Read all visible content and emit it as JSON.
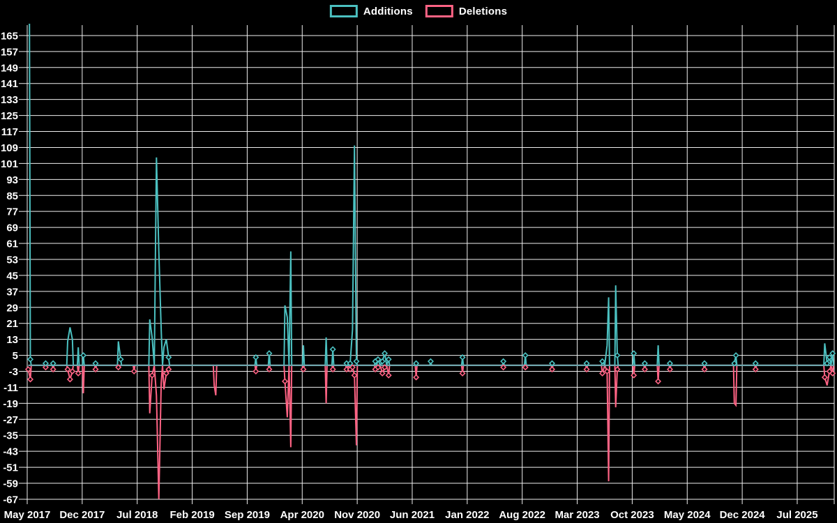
{
  "legend": {
    "additions_label": "Additions",
    "deletions_label": "Deletions"
  },
  "colors": {
    "background": "#000000",
    "grid": "#f0f0f0",
    "text": "#ffffff",
    "additions": "#4bc0c0",
    "deletions": "#ff6384",
    "baseline_blend": "#6fa6ae"
  },
  "chart_data": {
    "type": "line",
    "title": "",
    "legend_position": "top-center",
    "grid": true,
    "x_axis": {
      "unit": "month",
      "label_interval_months": 7,
      "labels": [
        "May 2017",
        "Dec 2017",
        "Jul 2018",
        "Feb 2019",
        "Sep 2019",
        "Apr 2020",
        "Nov 2020",
        "Jun 2021",
        "Jan 2022",
        "Aug 2022",
        "Mar 2023",
        "Oct 2023",
        "May 2024",
        "Dec 2024",
        "Jul 2025"
      ]
    },
    "y_axis": {
      "min": -67,
      "max": 165,
      "step": 8,
      "ticks": [
        165,
        157,
        149,
        141,
        133,
        125,
        117,
        109,
        101,
        93,
        85,
        77,
        69,
        61,
        53,
        45,
        37,
        29,
        21,
        13,
        5,
        -3,
        -11,
        -19,
        -27,
        -35,
        -43,
        -51,
        -59,
        -67
      ]
    },
    "series": [
      {
        "name": "Additions",
        "color": "#4bc0c0"
      },
      {
        "name": "Deletions",
        "color": "#ff6384"
      }
    ],
    "point_format": [
      "months_since_may_2017",
      "additions",
      "deletions"
    ],
    "first_point_clipped_above_top": true,
    "points": [
      [
        0.13,
        400,
        -2
      ],
      [
        0.4,
        3,
        -7
      ],
      [
        2.35,
        1,
        -1
      ],
      [
        3.3,
        1,
        -2
      ],
      [
        5.15,
        12,
        -2
      ],
      [
        5.45,
        19,
        -7
      ],
      [
        5.75,
        13,
        -3
      ],
      [
        6.5,
        9,
        -4
      ],
      [
        7.15,
        5,
        -14
      ],
      [
        8.7,
        1,
        -2
      ],
      [
        11.6,
        12,
        -1
      ],
      [
        11.9,
        3,
        0
      ],
      [
        13.6,
        0,
        -3
      ],
      [
        15.6,
        23,
        -24
      ],
      [
        15.9,
        14,
        -5
      ],
      [
        16.45,
        104,
        -15
      ],
      [
        16.75,
        57,
        -67
      ],
      [
        17.05,
        18,
        -9
      ],
      [
        17.4,
        9,
        -12
      ],
      [
        17.7,
        13,
        -4
      ],
      [
        18.0,
        4,
        -2
      ],
      [
        23.8,
        0,
        -10
      ],
      [
        24.0,
        0,
        -15
      ],
      [
        29.1,
        4,
        -3
      ],
      [
        30.8,
        6,
        -2
      ],
      [
        32.8,
        30,
        -8
      ],
      [
        33.1,
        24,
        -26
      ],
      [
        33.55,
        57,
        -41
      ],
      [
        35.15,
        10,
        -2
      ],
      [
        38.05,
        14,
        -19
      ],
      [
        38.9,
        8,
        -2
      ],
      [
        40.65,
        1,
        -2
      ],
      [
        41.1,
        1,
        -2
      ],
      [
        41.4,
        18,
        -1
      ],
      [
        41.65,
        110,
        -5
      ],
      [
        41.9,
        2,
        -40
      ],
      [
        44.3,
        2,
        -2
      ],
      [
        44.65,
        3,
        -1
      ],
      [
        45.2,
        2,
        -4
      ],
      [
        45.5,
        6,
        -1
      ],
      [
        46.0,
        3,
        -5
      ],
      [
        49.5,
        1,
        -6
      ],
      [
        51.35,
        2,
        0
      ],
      [
        55.4,
        4,
        -4
      ],
      [
        60.6,
        2,
        -1
      ],
      [
        63.4,
        5,
        -1
      ],
      [
        66.8,
        1,
        -2
      ],
      [
        71.2,
        1,
        -2
      ],
      [
        73.2,
        2,
        -4
      ],
      [
        73.8,
        10,
        -3
      ],
      [
        74.0,
        34,
        -58
      ],
      [
        74.9,
        40,
        -21
      ],
      [
        75.1,
        5,
        -2
      ],
      [
        77.2,
        6,
        -5
      ],
      [
        78.6,
        1,
        -2
      ],
      [
        80.3,
        10,
        -8
      ],
      [
        81.8,
        1,
        -2
      ],
      [
        86.2,
        1,
        -2
      ],
      [
        90.0,
        1,
        -19
      ],
      [
        90.2,
        5,
        -20
      ],
      [
        92.7,
        1,
        -2
      ],
      [
        101.5,
        11,
        -6
      ],
      [
        101.8,
        1,
        -10
      ],
      [
        102.1,
        4,
        -3
      ],
      [
        102.5,
        6,
        -4
      ]
    ]
  }
}
